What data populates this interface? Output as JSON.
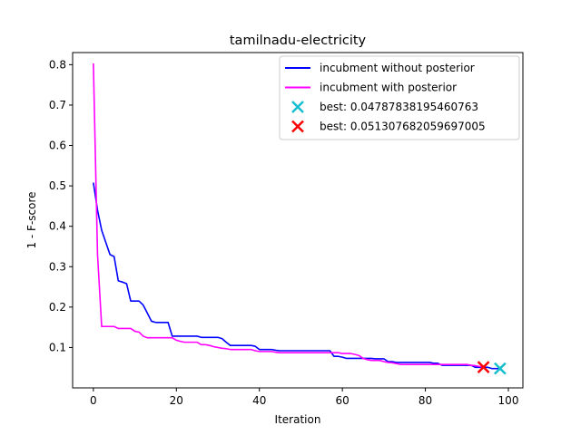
{
  "chart_data": {
    "type": "line",
    "title": "tamilnadu-electricity",
    "xlabel": "Iteration",
    "ylabel": "1 - F-score",
    "xlim": [
      -5,
      103.5
    ],
    "ylim": [
      0.0,
      0.83
    ],
    "xticks": [
      0,
      20,
      40,
      60,
      80,
      100
    ],
    "xtick_labels": [
      "0",
      "20",
      "40",
      "60",
      "80",
      "100"
    ],
    "yticks": [
      0.1,
      0.2,
      0.3,
      0.4,
      0.5,
      0.6,
      0.7,
      0.8
    ],
    "ytick_labels": [
      "0.1",
      "0.2",
      "0.3",
      "0.4",
      "0.5",
      "0.6",
      "0.7",
      "0.8"
    ],
    "grid": false,
    "legend_position": "top-right",
    "series": [
      {
        "name": "incubment without posterior",
        "color": "#0000ff",
        "x": [
          0,
          1,
          2,
          3,
          4,
          5,
          6,
          7,
          8,
          9,
          10,
          11,
          12,
          13,
          14,
          15,
          16,
          17,
          18,
          19,
          20,
          21,
          22,
          23,
          24,
          25,
          26,
          27,
          28,
          29,
          30,
          31,
          32,
          33,
          34,
          35,
          36,
          37,
          38,
          39,
          40,
          41,
          42,
          43,
          44,
          45,
          46,
          47,
          48,
          49,
          50,
          51,
          52,
          53,
          54,
          55,
          56,
          57,
          58,
          59,
          60,
          61,
          62,
          63,
          64,
          65,
          66,
          67,
          68,
          69,
          70,
          71,
          72,
          73,
          74,
          75,
          76,
          77,
          78,
          79,
          80,
          81,
          82,
          83,
          84,
          85,
          86,
          87,
          88,
          89,
          90,
          91,
          92,
          93,
          94,
          95,
          96,
          97,
          98
        ],
        "y": [
          0.508,
          0.44,
          0.39,
          0.36,
          0.33,
          0.325,
          0.265,
          0.262,
          0.258,
          0.215,
          0.215,
          0.215,
          0.205,
          0.185,
          0.165,
          0.162,
          0.162,
          0.162,
          0.162,
          0.128,
          0.128,
          0.128,
          0.128,
          0.128,
          0.128,
          0.128,
          0.125,
          0.125,
          0.125,
          0.125,
          0.125,
          0.122,
          0.113,
          0.105,
          0.105,
          0.105,
          0.105,
          0.105,
          0.105,
          0.103,
          0.095,
          0.095,
          0.095,
          0.095,
          0.093,
          0.092,
          0.092,
          0.092,
          0.092,
          0.092,
          0.092,
          0.092,
          0.092,
          0.092,
          0.092,
          0.092,
          0.092,
          0.092,
          0.078,
          0.078,
          0.076,
          0.073,
          0.073,
          0.073,
          0.073,
          0.073,
          0.073,
          0.073,
          0.072,
          0.072,
          0.072,
          0.065,
          0.065,
          0.063,
          0.063,
          0.063,
          0.063,
          0.063,
          0.063,
          0.063,
          0.063,
          0.063,
          0.061,
          0.061,
          0.056,
          0.056,
          0.056,
          0.056,
          0.056,
          0.056,
          0.056,
          0.056,
          0.051,
          0.051,
          0.051,
          0.051,
          0.0479,
          0.0479,
          0.0479
        ]
      },
      {
        "name": "incubment with posterior",
        "color": "#ff00ff",
        "x": [
          0,
          1,
          2,
          3,
          4,
          5,
          6,
          7,
          8,
          9,
          10,
          11,
          12,
          13,
          14,
          15,
          16,
          17,
          18,
          19,
          20,
          21,
          22,
          23,
          24,
          25,
          26,
          27,
          28,
          29,
          30,
          31,
          32,
          33,
          34,
          35,
          36,
          37,
          38,
          39,
          40,
          41,
          42,
          43,
          44,
          45,
          46,
          47,
          48,
          49,
          50,
          51,
          52,
          53,
          54,
          55,
          56,
          57,
          58,
          59,
          60,
          61,
          62,
          63,
          64,
          65,
          66,
          67,
          68,
          69,
          70,
          71,
          72,
          73,
          74,
          75,
          76,
          77,
          78,
          79,
          80,
          81,
          82,
          83,
          84,
          85,
          86,
          87,
          88,
          89,
          90,
          91,
          92,
          93,
          94
        ],
        "y": [
          0.803,
          0.33,
          0.152,
          0.152,
          0.152,
          0.152,
          0.147,
          0.147,
          0.147,
          0.147,
          0.14,
          0.138,
          0.128,
          0.124,
          0.124,
          0.124,
          0.124,
          0.124,
          0.124,
          0.124,
          0.118,
          0.115,
          0.113,
          0.113,
          0.113,
          0.113,
          0.107,
          0.107,
          0.105,
          0.102,
          0.1,
          0.098,
          0.097,
          0.095,
          0.095,
          0.095,
          0.095,
          0.095,
          0.095,
          0.092,
          0.09,
          0.09,
          0.09,
          0.09,
          0.088,
          0.087,
          0.087,
          0.087,
          0.087,
          0.087,
          0.087,
          0.087,
          0.087,
          0.087,
          0.087,
          0.087,
          0.087,
          0.087,
          0.087,
          0.087,
          0.085,
          0.085,
          0.085,
          0.083,
          0.08,
          0.073,
          0.07,
          0.068,
          0.068,
          0.068,
          0.065,
          0.063,
          0.062,
          0.06,
          0.058,
          0.058,
          0.058,
          0.058,
          0.058,
          0.058,
          0.058,
          0.058,
          0.058,
          0.058,
          0.058,
          0.058,
          0.058,
          0.058,
          0.058,
          0.058,
          0.058,
          0.056,
          0.055,
          0.053,
          0.0513
        ]
      }
    ],
    "markers": [
      {
        "name": "best: 0.04787838195460763",
        "x": 98,
        "y": 0.04787838195460763,
        "color": "#17becf",
        "symbol": "x"
      },
      {
        "name": "best: 0.051307682059697005",
        "x": 94,
        "y": 0.051307682059697005,
        "color": "#ff0000",
        "symbol": "x"
      }
    ]
  }
}
